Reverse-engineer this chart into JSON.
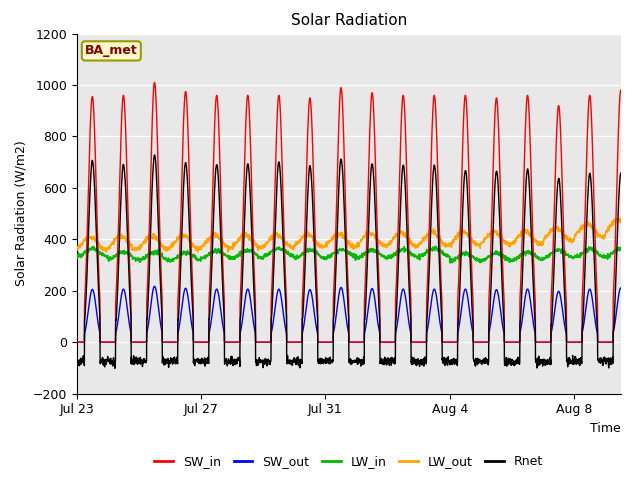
{
  "title": "Solar Radiation",
  "xlabel": "Time",
  "ylabel": "Solar Radiation (W/m2)",
  "ylim": [
    -200,
    1200
  ],
  "yticks": [
    -200,
    0,
    200,
    400,
    600,
    800,
    1000,
    1200
  ],
  "annotation": "BA_met",
  "annotation_color": "#8B0000",
  "annotation_bg": "#FFFACD",
  "annotation_edge": "#999900",
  "plot_bg": "#E8E8E8",
  "series_colors": {
    "SW_in": "#FF0000",
    "SW_out": "#0000FF",
    "LW_in": "#00BB00",
    "LW_out": "#FFA500",
    "Rnet": "#000000"
  },
  "x_tick_labels": [
    "Jul 23",
    "Jul 27",
    "Jul 31",
    "Aug 4",
    "Aug 8"
  ],
  "x_tick_positions": [
    0,
    4,
    8,
    12,
    16
  ],
  "n_days": 17.5,
  "pts_per_day": 144,
  "sw_in_peaks": [
    955,
    960,
    1010,
    975,
    960,
    960,
    960,
    950,
    990,
    970,
    960,
    960,
    960,
    950,
    960,
    920,
    960,
    980
  ],
  "lw_in_base": 340,
  "lw_out_base": 385,
  "night_rnet": -75
}
